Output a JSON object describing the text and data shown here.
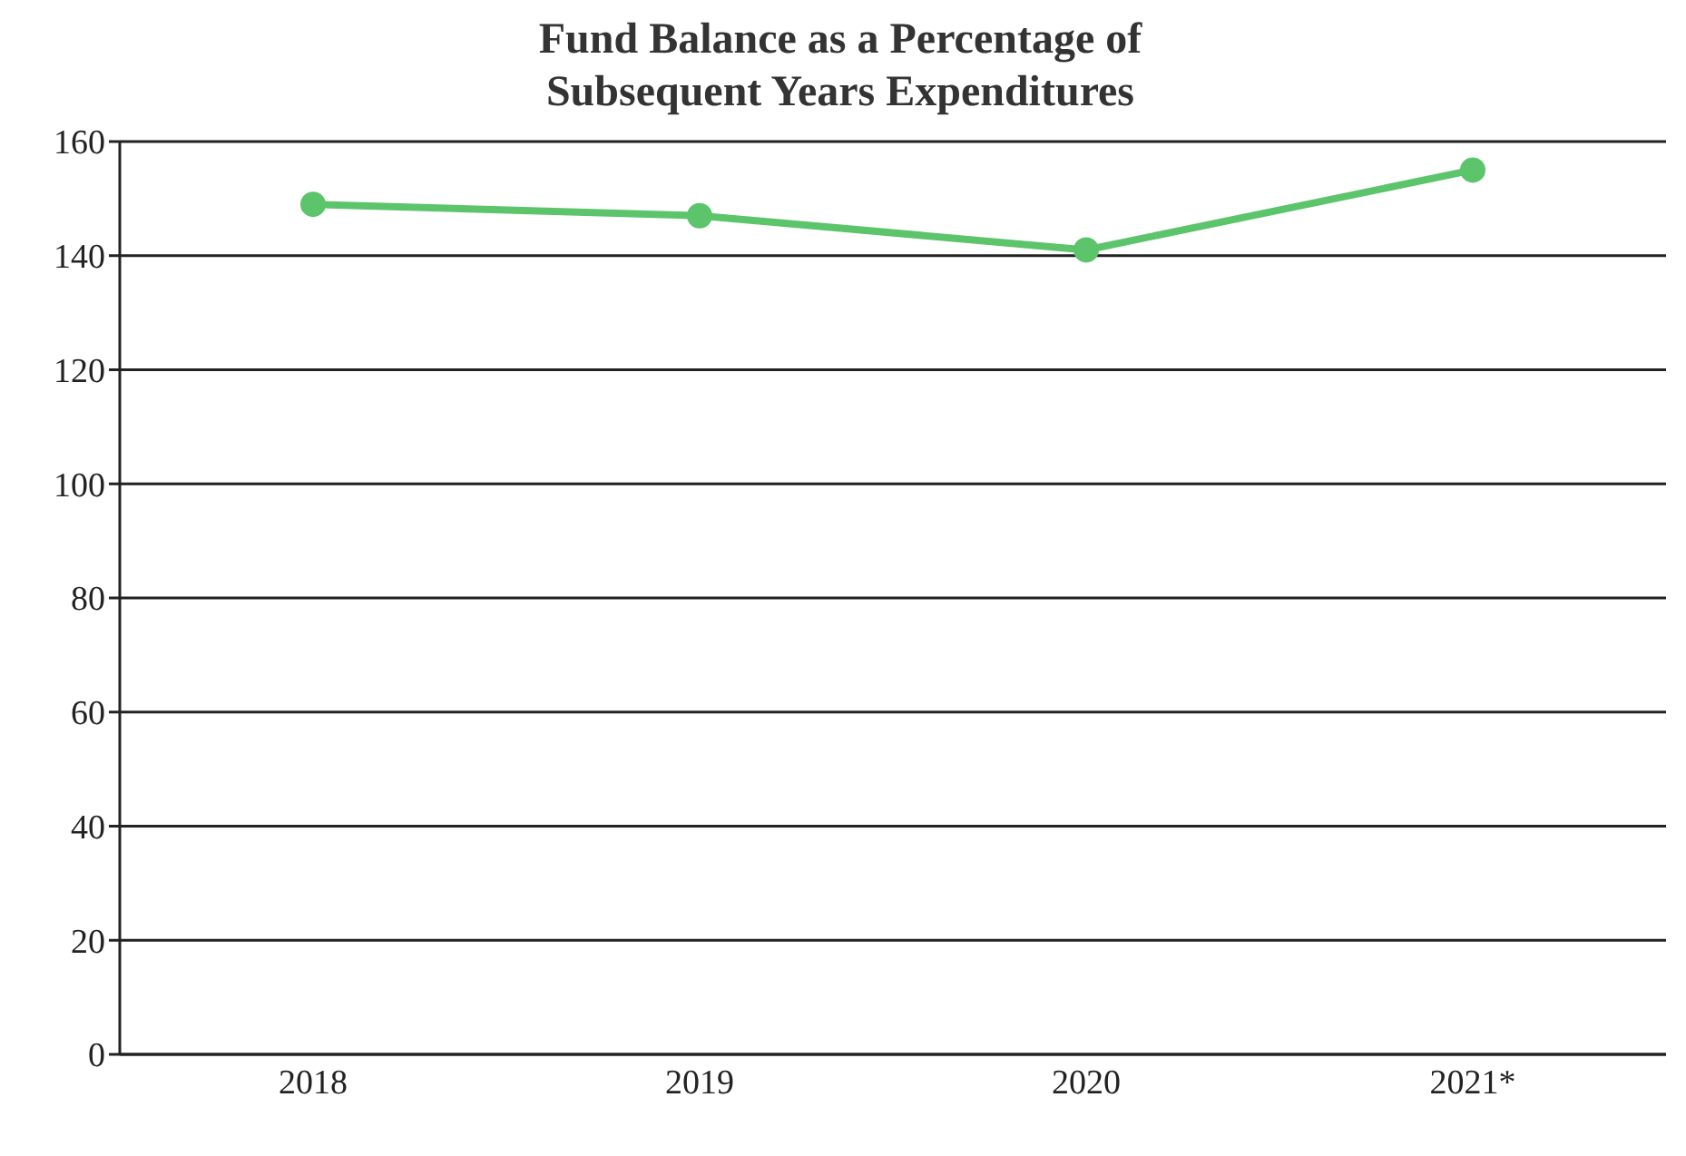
{
  "chart_data": {
    "type": "line",
    "title": "Fund Balance as a Percentage of\nSubsequent Years Expenditures",
    "categories": [
      "2018",
      "2019",
      "2020",
      "2021*"
    ],
    "series": [
      {
        "color": "#5cc46a",
        "values": [
          149,
          147,
          141,
          155
        ]
      }
    ],
    "ylim": [
      0,
      160
    ],
    "yticks": [
      0,
      20,
      40,
      60,
      80,
      100,
      120,
      140,
      160
    ],
    "grid": "y",
    "marker": "circle"
  }
}
